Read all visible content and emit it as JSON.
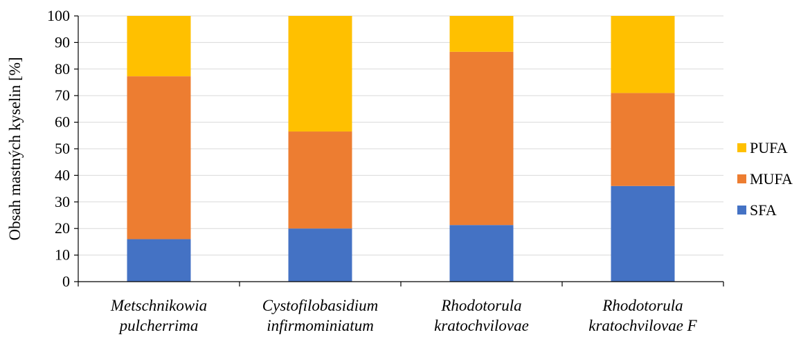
{
  "chart_data": {
    "type": "bar",
    "stacked": true,
    "categories": [
      [
        "Metschnikowia",
        "pulcherrima"
      ],
      [
        "Cystofilobasidium",
        "infirmominiatum"
      ],
      [
        "Rhodotorula",
        "kratochvilovae"
      ],
      [
        "Rhodotorula",
        "kratochvilovae F"
      ]
    ],
    "series": [
      {
        "name": "SFA",
        "color": "#4472C4",
        "values": [
          16,
          20,
          21.3,
          36
        ]
      },
      {
        "name": "MUFA",
        "color": "#ED7D31",
        "values": [
          61.3,
          36.5,
          65.2,
          35
        ]
      },
      {
        "name": "PUFA",
        "color": "#FFC000",
        "values": [
          22.7,
          43.5,
          13.5,
          29
        ]
      }
    ],
    "title": "",
    "xlabel": "",
    "ylabel": "Obsah mastných kyselin [%]",
    "ylim": [
      0,
      100
    ],
    "yticks": [
      0,
      10,
      20,
      30,
      40,
      50,
      60,
      70,
      80,
      90,
      100
    ],
    "grid": true,
    "legend": {
      "position": "right",
      "order": [
        "PUFA",
        "MUFA",
        "SFA"
      ]
    }
  }
}
